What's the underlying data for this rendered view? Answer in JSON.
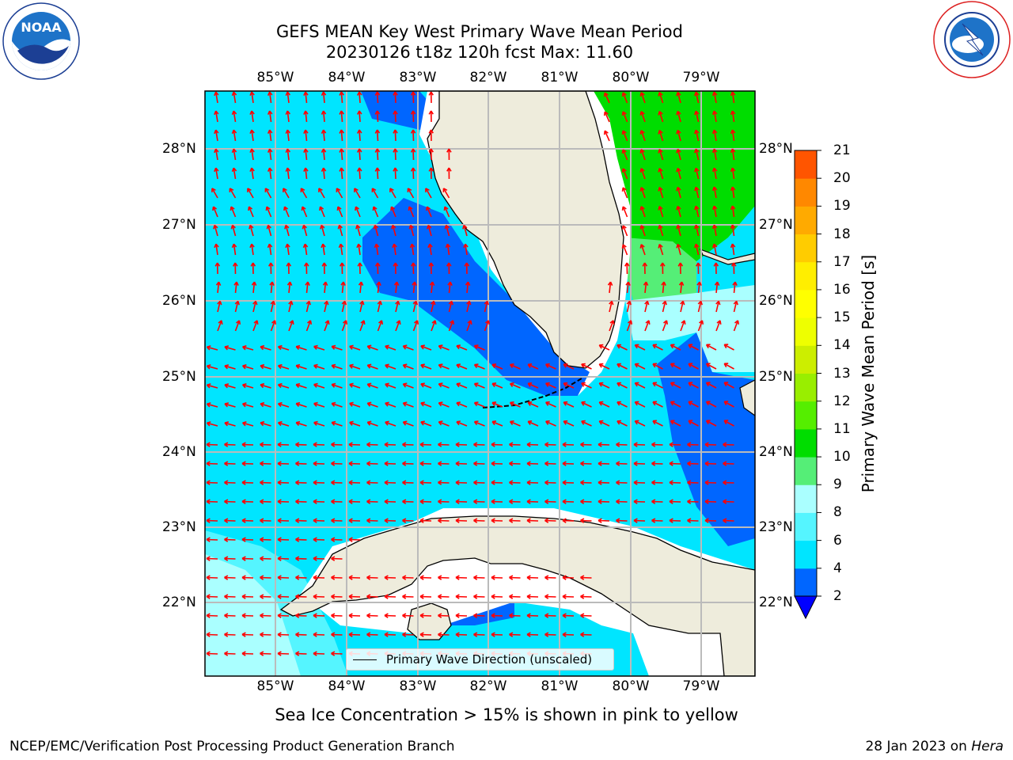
{
  "title_line1": "GEFS MEAN Key West Primary Wave Mean Period",
  "title_line2": "20230126 t18z 120h fcst   Max: 11.60",
  "logos": {
    "left": "noaa-logo",
    "right": "nws-logo"
  },
  "lon_labels": [
    "85°W",
    "84°W",
    "83°W",
    "82°W",
    "81°W",
    "80°W",
    "79°W"
  ],
  "lat_labels": [
    "28°N",
    "27°N",
    "26°N",
    "25°N",
    "24°N",
    "23°N",
    "22°N"
  ],
  "colorbar": {
    "label": "Primary Wave Mean Period [s]",
    "ticks": [
      "2",
      "4",
      "6",
      "8",
      "9",
      "10",
      "11",
      "12",
      "13",
      "14",
      "15",
      "16",
      "17",
      "18",
      "19",
      "20",
      "21"
    ],
    "colors": [
      "#0066ff",
      "#00e5ff",
      "#55f5ff",
      "#aaffff",
      "#55ee77",
      "#00dd00",
      "#55ee00",
      "#99ee00",
      "#ccee00",
      "#eeff00",
      "#ffff00",
      "#ffee00",
      "#ffcc00",
      "#ffaa00",
      "#ff8800",
      "#ff5500",
      "#ff2200",
      "#ff0000"
    ],
    "extend_min_color": "#0000ff"
  },
  "legend_label": "Primary Wave Direction (unscaled)",
  "colors": {
    "land": "#eeecdc",
    "arrow": "#ff0000",
    "grid": "#bbbbbb"
  },
  "subtitle": "Sea Ice Concentration > 15% is shown in pink to yellow",
  "footer_left": "NCEP/EMC/Verification Post Processing Product Generation Branch",
  "footer_right_prefix": "28 Jan 2023 on ",
  "footer_right_machine": "Hera"
}
